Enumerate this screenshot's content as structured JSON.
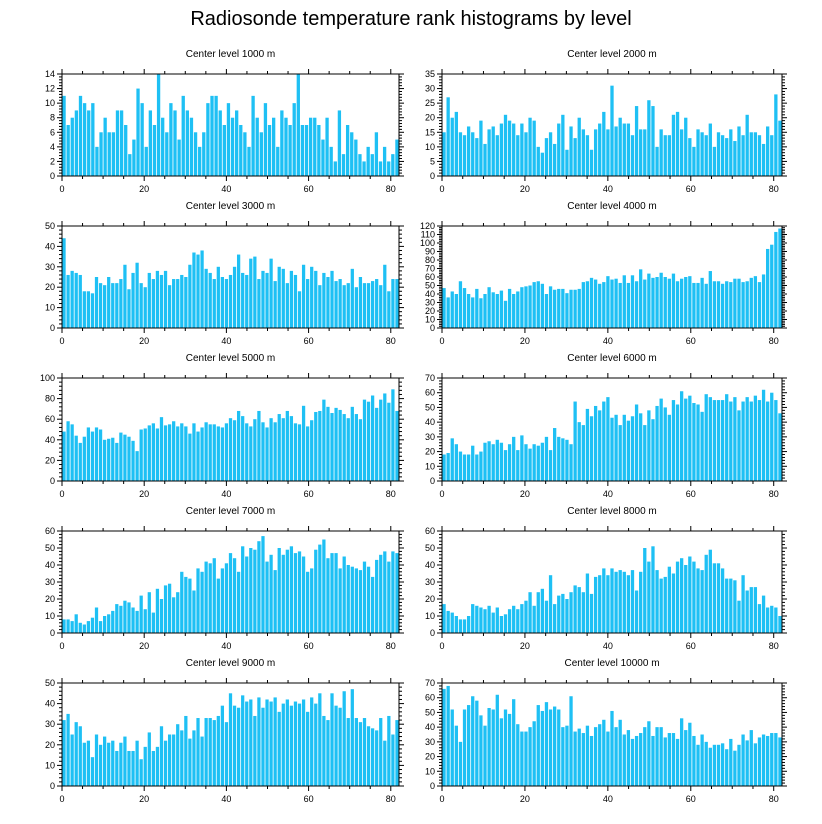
{
  "title": "Radiosonde temperature rank histograms by level",
  "chart_data": [
    {
      "type": "bar",
      "title": "Center level 1000 m",
      "ylim": [
        0,
        14
      ],
      "yticks": [
        0,
        2,
        4,
        6,
        8,
        10,
        12,
        14
      ],
      "xlim": [
        0,
        82
      ],
      "xticks": [
        0,
        20,
        40,
        60,
        80
      ],
      "values": [
        11,
        7,
        8,
        9,
        11,
        10,
        9,
        10,
        4,
        6,
        8,
        6,
        6,
        9,
        9,
        7,
        3,
        5,
        12,
        10,
        4,
        9,
        7,
        14,
        8,
        6,
        10,
        9,
        5,
        11,
        9,
        8,
        6,
        4,
        6,
        10,
        11,
        11,
        9,
        7,
        10,
        8,
        9,
        7,
        6,
        4,
        11,
        8,
        6,
        10,
        7,
        8,
        4,
        9,
        8,
        7,
        10,
        14,
        7,
        7,
        8,
        8,
        7,
        5,
        8,
        4,
        2,
        9,
        3,
        7,
        6,
        5,
        3,
        2,
        4,
        3,
        6,
        2,
        4,
        2,
        3,
        5
      ]
    },
    {
      "type": "bar",
      "title": "Center level 2000 m",
      "ylim": [
        0,
        35
      ],
      "yticks": [
        0,
        5,
        10,
        15,
        20,
        25,
        30,
        35
      ],
      "xlim": [
        0,
        82
      ],
      "xticks": [
        0,
        20,
        40,
        60,
        80
      ],
      "values": [
        15,
        27,
        20,
        22,
        15,
        14,
        17,
        15,
        13,
        19,
        11,
        16,
        17,
        14,
        18,
        21,
        19,
        18,
        14,
        18,
        15,
        20,
        19,
        10,
        8,
        13,
        15,
        11,
        18,
        21,
        9,
        17,
        13,
        20,
        16,
        14,
        9,
        16,
        18,
        22,
        16,
        31,
        17,
        20,
        18,
        18,
        14,
        24,
        16,
        16,
        26,
        24,
        10,
        16,
        14,
        14,
        21,
        22,
        16,
        20,
        13,
        10,
        16,
        15,
        14,
        18,
        10,
        15,
        14,
        13,
        16,
        12,
        17,
        14,
        21,
        15,
        15,
        14,
        11,
        17,
        14,
        28,
        19
      ]
    },
    {
      "type": "bar",
      "title": "Center level 3000 m",
      "ylim": [
        0,
        50
      ],
      "yticks": [
        0,
        10,
        20,
        30,
        40,
        50
      ],
      "xlim": [
        0,
        82
      ],
      "xticks": [
        0,
        20,
        40,
        60,
        80
      ],
      "values": [
        44,
        26,
        28,
        27,
        26,
        18,
        18,
        17,
        25,
        22,
        21,
        25,
        22,
        22,
        24,
        31,
        19,
        27,
        32,
        22,
        20,
        27,
        24,
        28,
        26,
        28,
        21,
        24,
        24,
        26,
        25,
        31,
        37,
        36,
        38,
        29,
        27,
        24,
        30,
        25,
        24,
        26,
        30,
        36,
        27,
        26,
        34,
        35,
        24,
        28,
        27,
        34,
        23,
        30,
        29,
        22,
        28,
        26,
        18,
        31,
        24,
        30,
        28,
        21,
        27,
        25,
        28,
        23,
        24,
        21,
        22,
        29,
        20,
        25,
        22,
        22,
        23,
        24,
        21,
        31,
        18,
        24,
        24
      ]
    },
    {
      "type": "bar",
      "title": "Center level 4000 m",
      "ylim": [
        0,
        120
      ],
      "yticks": [
        0,
        10,
        20,
        30,
        40,
        50,
        60,
        70,
        80,
        90,
        100,
        110,
        120
      ],
      "xlim": [
        0,
        82
      ],
      "xticks": [
        0,
        20,
        40,
        60,
        80
      ],
      "values": [
        47,
        36,
        43,
        40,
        55,
        47,
        40,
        36,
        46,
        35,
        40,
        48,
        42,
        40,
        44,
        32,
        46,
        40,
        43,
        48,
        49,
        50,
        54,
        55,
        52,
        40,
        49,
        45,
        46,
        46,
        41,
        45,
        45,
        46,
        54,
        55,
        59,
        57,
        52,
        54,
        61,
        57,
        58,
        53,
        62,
        53,
        62,
        55,
        69,
        57,
        64,
        59,
        60,
        65,
        60,
        58,
        64,
        55,
        58,
        60,
        61,
        53,
        53,
        59,
        52,
        67,
        55,
        55,
        52,
        55,
        54,
        58,
        58,
        54,
        55,
        59,
        61,
        54,
        63,
        93,
        98,
        113,
        117
      ]
    },
    {
      "type": "bar",
      "title": "Center level 5000 m",
      "ylim": [
        0,
        100
      ],
      "yticks": [
        0,
        20,
        40,
        60,
        80,
        100
      ],
      "xlim": [
        0,
        82
      ],
      "xticks": [
        0,
        20,
        40,
        60,
        80
      ],
      "values": [
        48,
        58,
        55,
        44,
        37,
        43,
        52,
        48,
        52,
        50,
        40,
        41,
        42,
        37,
        47,
        45,
        43,
        39,
        29,
        50,
        51,
        54,
        56,
        51,
        62,
        54,
        55,
        58,
        53,
        56,
        53,
        46,
        56,
        48,
        52,
        57,
        55,
        55,
        53,
        52,
        56,
        61,
        59,
        68,
        63,
        56,
        53,
        60,
        68,
        57,
        52,
        61,
        57,
        65,
        61,
        68,
        63,
        56,
        55,
        73,
        53,
        59,
        67,
        68,
        79,
        72,
        66,
        71,
        69,
        65,
        61,
        72,
        65,
        60,
        79,
        77,
        83,
        71,
        79,
        85,
        76,
        89,
        68
      ]
    },
    {
      "type": "bar",
      "title": "Center level 6000 m",
      "ylim": [
        0,
        70
      ],
      "yticks": [
        0,
        10,
        20,
        30,
        40,
        50,
        60,
        70
      ],
      "xlim": [
        0,
        82
      ],
      "xticks": [
        0,
        20,
        40,
        60,
        80
      ],
      "values": [
        18,
        19,
        29,
        25,
        20,
        18,
        18,
        24,
        18,
        20,
        26,
        27,
        25,
        28,
        26,
        21,
        25,
        30,
        21,
        31,
        25,
        22,
        25,
        24,
        26,
        30,
        21,
        36,
        30,
        29,
        28,
        25,
        54,
        40,
        38,
        49,
        44,
        51,
        48,
        54,
        57,
        43,
        45,
        38,
        45,
        41,
        44,
        52,
        46,
        38,
        48,
        42,
        51,
        56,
        50,
        45,
        55,
        52,
        61,
        56,
        58,
        53,
        52,
        47,
        59,
        57,
        55,
        55,
        55,
        59,
        54,
        57,
        48,
        54,
        57,
        54,
        58,
        55,
        62,
        54,
        60,
        55,
        46
      ]
    },
    {
      "type": "bar",
      "title": "Center level 7000 m",
      "ylim": [
        0,
        60
      ],
      "yticks": [
        0,
        10,
        20,
        30,
        40,
        50,
        60
      ],
      "xlim": [
        0,
        82
      ],
      "xticks": [
        0,
        20,
        40,
        60,
        80
      ],
      "values": [
        8,
        8,
        7,
        11,
        6,
        5,
        7,
        9,
        15,
        7,
        10,
        11,
        13,
        17,
        16,
        19,
        18,
        15,
        13,
        22,
        14,
        24,
        12,
        26,
        20,
        28,
        29,
        21,
        24,
        36,
        33,
        32,
        25,
        38,
        36,
        42,
        41,
        44,
        32,
        38,
        41,
        47,
        44,
        36,
        51,
        45,
        50,
        49,
        54,
        57,
        42,
        46,
        37,
        50,
        46,
        49,
        51,
        47,
        48,
        45,
        36,
        38,
        49,
        52,
        55,
        44,
        47,
        47,
        38,
        45,
        40,
        39,
        38,
        37,
        42,
        39,
        33,
        43,
        46,
        48,
        42,
        48,
        47
      ]
    },
    {
      "type": "bar",
      "title": "Center level 8000 m",
      "ylim": [
        0,
        60
      ],
      "yticks": [
        0,
        10,
        20,
        30,
        40,
        50,
        60
      ],
      "xlim": [
        0,
        82
      ],
      "xticks": [
        0,
        20,
        40,
        60,
        80
      ],
      "values": [
        17,
        13,
        12,
        10,
        8,
        8,
        10,
        17,
        16,
        15,
        14,
        16,
        12,
        15,
        10,
        11,
        14,
        16,
        14,
        17,
        19,
        24,
        16,
        24,
        26,
        19,
        34,
        17,
        22,
        23,
        20,
        24,
        28,
        27,
        24,
        35,
        23,
        33,
        34,
        38,
        34,
        38,
        36,
        37,
        36,
        34,
        37,
        25,
        36,
        50,
        42,
        51,
        37,
        32,
        33,
        39,
        35,
        42,
        44,
        40,
        45,
        42,
        38,
        37,
        46,
        49,
        41,
        41,
        38,
        32,
        32,
        31,
        19,
        34,
        25,
        27,
        27,
        17,
        22,
        15,
        16,
        15,
        10
      ]
    },
    {
      "type": "bar",
      "title": "Center level 9000 m",
      "ylim": [
        0,
        50
      ],
      "yticks": [
        0,
        10,
        20,
        30,
        40,
        50
      ],
      "xlim": [
        0,
        82
      ],
      "xticks": [
        0,
        20,
        40,
        60,
        80
      ],
      "values": [
        32,
        35,
        25,
        31,
        29,
        21,
        22,
        14,
        25,
        20,
        24,
        21,
        22,
        17,
        21,
        24,
        17,
        17,
        22,
        13,
        19,
        26,
        17,
        19,
        29,
        22,
        25,
        25,
        30,
        27,
        34,
        23,
        27,
        33,
        24,
        33,
        33,
        32,
        34,
        39,
        31,
        45,
        39,
        38,
        44,
        41,
        42,
        34,
        43,
        38,
        42,
        41,
        43,
        36,
        40,
        42,
        39,
        41,
        40,
        42,
        36,
        43,
        40,
        45,
        34,
        32,
        45,
        39,
        38,
        46,
        33,
        47,
        33,
        31,
        33,
        29,
        28,
        27,
        33,
        22,
        34,
        25,
        32
      ]
    },
    {
      "type": "bar",
      "title": "Center level 10000 m",
      "ylim": [
        0,
        70
      ],
      "yticks": [
        0,
        10,
        20,
        30,
        40,
        50,
        60,
        70
      ],
      "xlim": [
        0,
        82
      ],
      "xticks": [
        0,
        20,
        40,
        60,
        80
      ],
      "values": [
        66,
        68,
        52,
        41,
        30,
        52,
        55,
        61,
        58,
        48,
        41,
        53,
        52,
        62,
        46,
        52,
        49,
        59,
        42,
        37,
        37,
        40,
        44,
        55,
        51,
        57,
        52,
        54,
        52,
        40,
        41,
        61,
        37,
        39,
        36,
        41,
        34,
        40,
        42,
        45,
        37,
        51,
        40,
        45,
        35,
        38,
        32,
        34,
        36,
        40,
        44,
        34,
        40,
        40,
        33,
        36,
        36,
        32,
        46,
        38,
        43,
        34,
        28,
        35,
        30,
        26,
        28,
        28,
        29,
        25,
        32,
        24,
        28,
        35,
        31,
        38,
        29,
        33,
        35,
        34,
        36,
        36,
        33
      ]
    }
  ]
}
